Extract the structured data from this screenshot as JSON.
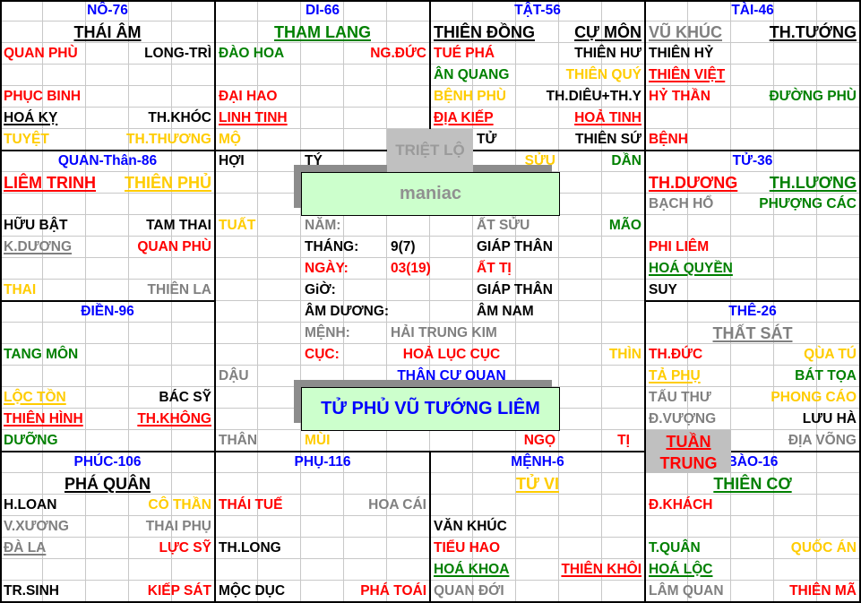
{
  "colors": {
    "red": "#ff0000",
    "green": "#008000",
    "yellow": "#ffcc00",
    "blue": "#0000ff",
    "gray": "#808080",
    "black": "#000000",
    "box_bg": "#ccffcc",
    "overlay": "#c0c0c0"
  },
  "palaces": {
    "no": {
      "title": "NÔ-76",
      "stars": [
        {
          "text": "THÁI ÂM",
          "color": "black",
          "underline": true,
          "main": true
        },
        {
          "text": "QUAN PHÙ",
          "color": "red"
        },
        {
          "text": "LONG-TRÌ",
          "color": "black"
        },
        {
          "text": "PHỤC BINH",
          "color": "red"
        },
        {
          "text": "HOÁ KỴ",
          "color": "black",
          "underline": true
        },
        {
          "text": "TH.KHÓC",
          "color": "black"
        },
        {
          "text": "TUYỆT",
          "color": "yellow"
        },
        {
          "text": "TH.THƯƠNG",
          "color": "yellow"
        }
      ]
    },
    "di": {
      "title": "DI-66",
      "stars": [
        {
          "text": "THAM LANG",
          "color": "green",
          "underline": true,
          "main": true
        },
        {
          "text": "ĐÀO HOA",
          "color": "green"
        },
        {
          "text": "NG.ĐỨC",
          "color": "red"
        },
        {
          "text": "ĐẠI HAO",
          "color": "red"
        },
        {
          "text": "LINH TINH",
          "color": "red",
          "underline": true
        },
        {
          "text": "MỘ",
          "color": "yellow"
        }
      ]
    },
    "tat": {
      "title": "TẬT-56",
      "stars": [
        {
          "text": "THIÊN ĐỒNG",
          "color": "black",
          "underline": true,
          "main": true
        },
        {
          "text": "CỰ MÔN",
          "color": "black",
          "underline": true,
          "main": true
        },
        {
          "text": "TUÉ PHÁ",
          "color": "red"
        },
        {
          "text": "THIÊN HƯ",
          "color": "black"
        },
        {
          "text": "ÂN QUANG",
          "color": "green"
        },
        {
          "text": "THIÊN QUÝ",
          "color": "yellow"
        },
        {
          "text": "BỆNH PHÙ",
          "color": "yellow"
        },
        {
          "text": "TH.DIÊU+TH.Y",
          "color": "black"
        },
        {
          "text": "ĐỊA KIẾP",
          "color": "red",
          "underline": true
        },
        {
          "text": "HOẢ TINH",
          "color": "red",
          "underline": true
        },
        {
          "text": "TỬ",
          "color": "black"
        },
        {
          "text": "THIÊN SỨ",
          "color": "black"
        }
      ]
    },
    "tai": {
      "title": "TÀI-46",
      "stars": [
        {
          "text": "VŨ KHÚC",
          "color": "gray",
          "underline": true,
          "main": true
        },
        {
          "text": "TH.TƯỚNG",
          "color": "black",
          "underline": true,
          "main": true
        },
        {
          "text": "THIÊN HỶ",
          "color": "black"
        },
        {
          "text": "THIÊN VIỆT",
          "color": "red",
          "underline": true
        },
        {
          "text": "HỶ THẦN",
          "color": "red"
        },
        {
          "text": "ĐƯỜNG PHÙ",
          "color": "green"
        },
        {
          "text": "BỆNH",
          "color": "red"
        }
      ]
    },
    "quan": {
      "title": "QUAN-Thân-86",
      "stars": [
        {
          "text": "LIÊM TRINH",
          "color": "red",
          "underline": true,
          "main": true
        },
        {
          "text": "THIÊN PHỦ",
          "color": "yellow",
          "underline": true,
          "main": true
        },
        {
          "text": "HỮU BẬT",
          "color": "black"
        },
        {
          "text": "TAM THAI",
          "color": "black"
        },
        {
          "text": "K.DƯƠNG",
          "color": "gray",
          "underline": true
        },
        {
          "text": "QUAN PHÙ",
          "color": "red"
        },
        {
          "text": "THAI",
          "color": "yellow"
        },
        {
          "text": "THIÊN LA",
          "color": "gray"
        }
      ]
    },
    "tu": {
      "title": "TỬ-36",
      "stars": [
        {
          "text": "TH.DƯƠNG",
          "color": "red",
          "underline": true,
          "main": true
        },
        {
          "text": "TH.LƯƠNG",
          "color": "green",
          "underline": true,
          "main": true
        },
        {
          "text": "BẠCH HỔ",
          "color": "gray"
        },
        {
          "text": "PHƯỢNG CÁC",
          "color": "green"
        },
        {
          "text": "PHI LIÊM",
          "color": "red"
        },
        {
          "text": "HOÁ QUYỀN",
          "color": "green",
          "underline": true
        },
        {
          "text": "SUY",
          "color": "black"
        }
      ]
    },
    "dien": {
      "title": "ĐIỀN-96",
      "stars": [
        {
          "text": "TANG MÔN",
          "color": "green"
        },
        {
          "text": "LỘC TỒN",
          "color": "yellow",
          "underline": true
        },
        {
          "text": "BÁC SỸ",
          "color": "black"
        },
        {
          "text": "THIÊN HÌNH",
          "color": "red",
          "underline": true
        },
        {
          "text": "TH.KHÔNG",
          "color": "red",
          "underline": true
        },
        {
          "text": "DƯỠNG",
          "color": "green"
        }
      ]
    },
    "the": {
      "title": "THÊ-26",
      "stars": [
        {
          "text": "THẤT SÁT",
          "color": "gray",
          "underline": true,
          "main": true
        },
        {
          "text": "TH.ĐỨC",
          "color": "red"
        },
        {
          "text": "QÙA TÚ",
          "color": "yellow"
        },
        {
          "text": "TẢ PHỤ",
          "color": "yellow",
          "underline": true
        },
        {
          "text": "BÁT TỌA",
          "color": "green"
        },
        {
          "text": "TẤU THƯ",
          "color": "gray"
        },
        {
          "text": "PHONG CÁO",
          "color": "yellow"
        },
        {
          "text": "Đ.VƯỢNG",
          "color": "gray"
        },
        {
          "text": "LƯU HÀ",
          "color": "black"
        },
        {
          "text": "ĐỊA VÕNG",
          "color": "gray"
        }
      ]
    },
    "phuc": {
      "title": "PHÚC-106",
      "stars": [
        {
          "text": "PHÁ QUÂN",
          "color": "black",
          "underline": true,
          "main": true
        },
        {
          "text": "H.LOAN",
          "color": "black"
        },
        {
          "text": "CÔ THẦN",
          "color": "yellow"
        },
        {
          "text": "V.XƯƠNG",
          "color": "gray"
        },
        {
          "text": "THAI PHỤ",
          "color": "gray"
        },
        {
          "text": "ĐÀ LA",
          "color": "gray",
          "underline": true
        },
        {
          "text": "LỰC SỸ",
          "color": "red"
        },
        {
          "text": "TR.SINH",
          "color": "black"
        },
        {
          "text": "KIẾP SÁT",
          "color": "red"
        }
      ]
    },
    "phu": {
      "title": "PHỤ-116",
      "stars": [
        {
          "text": "THÁI TUẾ",
          "color": "red"
        },
        {
          "text": "HOA CÁI",
          "color": "gray"
        },
        {
          "text": "TH.LONG",
          "color": "black"
        },
        {
          "text": "MỘC DỤC",
          "color": "black"
        },
        {
          "text": "PHÁ TOÁI",
          "color": "red"
        }
      ]
    },
    "menh": {
      "title": "MỆNH-6",
      "stars": [
        {
          "text": "TỬ VI",
          "color": "yellow",
          "underline": true,
          "main": true
        },
        {
          "text": "VĂN KHÚC",
          "color": "black"
        },
        {
          "text": "TIỂU HAO",
          "color": "red"
        },
        {
          "text": "HOÁ KHOA",
          "color": "green",
          "underline": true
        },
        {
          "text": "THIÊN KHÔI",
          "color": "red",
          "underline": true
        },
        {
          "text": "QUAN ĐỚI",
          "color": "gray"
        }
      ]
    },
    "bao": {
      "title": "BÀO-16",
      "stars": [
        {
          "text": "THIÊN CƠ",
          "color": "green",
          "underline": true,
          "main": true
        },
        {
          "text": "Đ.KHÁCH",
          "color": "red"
        },
        {
          "text": "T.QUÂN",
          "color": "green"
        },
        {
          "text": "QUỐC ÁN",
          "color": "yellow"
        },
        {
          "text": "HOÁ LỘC",
          "color": "green",
          "underline": true
        },
        {
          "text": "LÂM QUAN",
          "color": "gray"
        },
        {
          "text": "THIÊN MÃ",
          "color": "red"
        }
      ]
    }
  },
  "center": {
    "items": [
      {
        "text": "HỢI",
        "color": "black"
      },
      {
        "text": "TÝ",
        "color": "black"
      },
      {
        "text": "SỬU",
        "color": "yellow"
      },
      {
        "text": "DẦN",
        "color": "green"
      },
      {
        "text": "TUẤT",
        "color": "yellow"
      },
      {
        "text": "MÃO",
        "color": "green"
      },
      {
        "text": "THÌN",
        "color": "yellow"
      },
      {
        "text": "DẬU",
        "color": "gray"
      },
      {
        "text": "THÂN",
        "color": "gray"
      },
      {
        "text": "MÙI",
        "color": "yellow"
      },
      {
        "text": "NGỌ",
        "color": "red"
      },
      {
        "text": "TỊ",
        "color": "red"
      },
      {
        "text": "NĂM:",
        "color": "gray"
      },
      {
        "text": "ẤT SỬU",
        "color": "gray"
      },
      {
        "text": "THÁNG:",
        "color": "black"
      },
      {
        "text": "9(7)",
        "color": "black"
      },
      {
        "text": "GIÁP THÂN",
        "color": "black"
      },
      {
        "text": "NGÀY:",
        "color": "red"
      },
      {
        "text": "03(19)",
        "color": "red"
      },
      {
        "text": "ẤT TỊ",
        "color": "red"
      },
      {
        "text": "GiỜ:",
        "color": "black"
      },
      {
        "text": "GIÁP THÂN",
        "color": "black"
      },
      {
        "text": "ÂM DƯƠNG:",
        "color": "black"
      },
      {
        "text": "ÂM NAM",
        "color": "black"
      },
      {
        "text": "MỆNH:",
        "color": "gray"
      },
      {
        "text": "HẢI TRUNG KIM",
        "color": "gray"
      },
      {
        "text": "CỤC:",
        "color": "red"
      },
      {
        "text": "HOẢ LỤC CỤC",
        "color": "red"
      },
      {
        "text": "THÂN CƯ QUAN",
        "color": "blue"
      }
    ],
    "name_box": "maniac",
    "chart_type_box": "TỬ PHỦ VŨ TƯỚNG LIÊM"
  },
  "overlays": {
    "triet": "TRIỆT LỘ",
    "tuan": "TUẦN",
    "trung": "TRUNG"
  }
}
